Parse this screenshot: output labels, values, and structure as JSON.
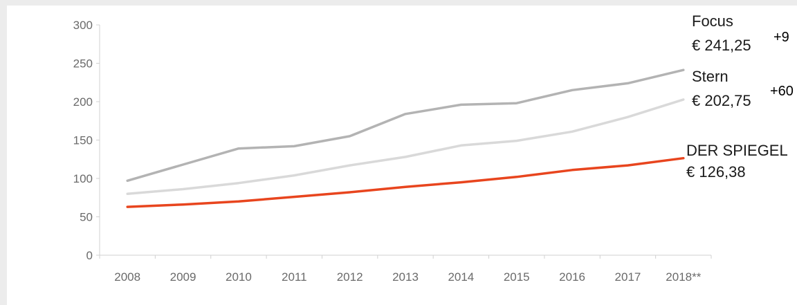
{
  "chart_data": {
    "type": "line",
    "title": "",
    "xlabel": "",
    "ylabel": "",
    "ylim": [
      0,
      300
    ],
    "y_ticks": [
      "0",
      "50",
      "100",
      "150",
      "200",
      "250",
      "300"
    ],
    "categories": [
      "2008",
      "2009",
      "2010",
      "2011",
      "2012",
      "2013",
      "2014",
      "2015",
      "2016",
      "2017",
      "2018**"
    ],
    "grid": false,
    "series": [
      {
        "key": "focus",
        "name": "Focus",
        "price_label": "€ 241,25",
        "change_label": "+9",
        "color": "#b3b3b3",
        "values": [
          97,
          118,
          139,
          142,
          155,
          184,
          196,
          198,
          215,
          224,
          241.25
        ]
      },
      {
        "key": "stern",
        "name": "Stern",
        "price_label": "€ 202,75",
        "change_label": "+60",
        "color": "#d9d9d9",
        "values": [
          80,
          86,
          94,
          104,
          117,
          128,
          143,
          149,
          161,
          180,
          202.75
        ]
      },
      {
        "key": "spiegel",
        "name": "DER SPIEGEL",
        "price_label": "€ 126,38",
        "change_label": "",
        "color": "#e8451e",
        "values": [
          63,
          66,
          70,
          76,
          82,
          89,
          95,
          102,
          111,
          117,
          126.38
        ]
      }
    ]
  }
}
